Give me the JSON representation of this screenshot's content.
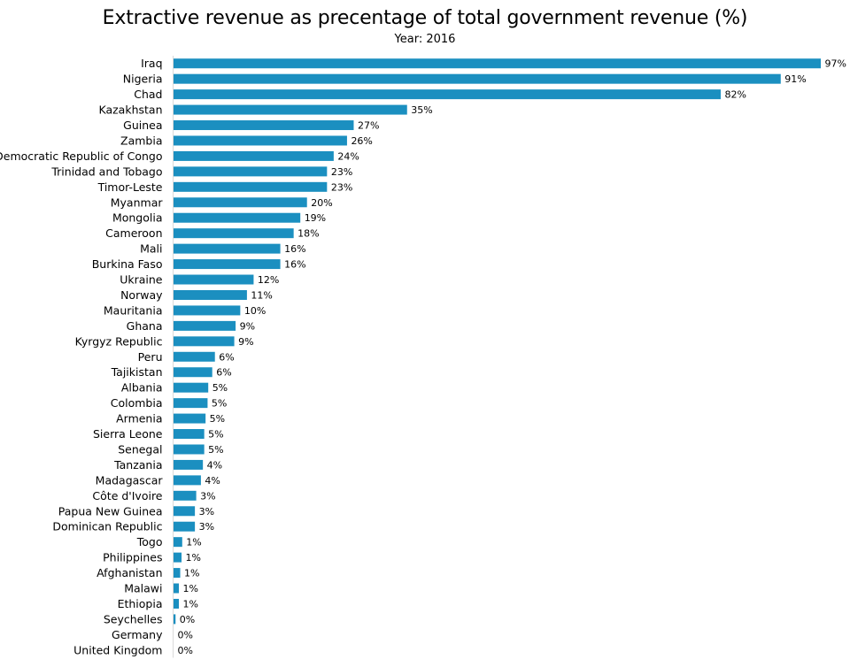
{
  "chart_data": {
    "type": "bar",
    "orientation": "horizontal",
    "title": "Extractive revenue as precentage of total government revenue (%)",
    "subtitle": "Year: 2016",
    "xlabel": "",
    "ylabel": "",
    "xlim": [
      0,
      97
    ],
    "grid": false,
    "value_suffix": "%",
    "bar_color": "#1b8fc0",
    "categories": [
      "Iraq",
      "Nigeria",
      "Chad",
      "Kazakhstan",
      "Guinea",
      "Zambia",
      "Democratic Republic of Congo",
      "Trinidad and Tobago",
      "Timor-Leste",
      "Myanmar",
      "Mongolia",
      "Cameroon",
      "Mali",
      "Burkina Faso",
      "Ukraine",
      "Norway",
      "Mauritania",
      "Ghana",
      "Kyrgyz Republic",
      "Peru",
      "Tajikistan",
      "Albania",
      "Colombia",
      "Armenia",
      "Sierra Leone",
      "Senegal",
      "Tanzania",
      "Madagascar",
      "Côte d'Ivoire",
      "Papua New Guinea",
      "Dominican Republic",
      "Togo",
      "Philippines",
      "Afghanistan",
      "Malawi",
      "Ethiopia",
      "Seychelles",
      "Germany",
      "United Kingdom"
    ],
    "values": [
      97,
      91,
      82,
      35,
      27,
      26,
      24,
      23,
      23,
      20,
      19,
      18,
      16,
      16,
      12,
      11,
      10,
      9,
      9,
      6,
      6,
      5,
      5,
      5,
      5,
      5,
      4,
      4,
      3,
      3,
      3,
      1,
      1,
      1,
      1,
      1,
      0,
      0,
      0
    ],
    "bar_values_precise": [
      97,
      91,
      82,
      35,
      27,
      26,
      24,
      23,
      23,
      20,
      19,
      18,
      16,
      16,
      12,
      11,
      10,
      9.3,
      9.1,
      6.2,
      5.8,
      5.2,
      5.1,
      4.8,
      4.6,
      4.6,
      4.4,
      4.1,
      3.4,
      3.2,
      3.2,
      1.3,
      1.2,
      1.0,
      0.8,
      0.8,
      0.3,
      0,
      0
    ]
  }
}
